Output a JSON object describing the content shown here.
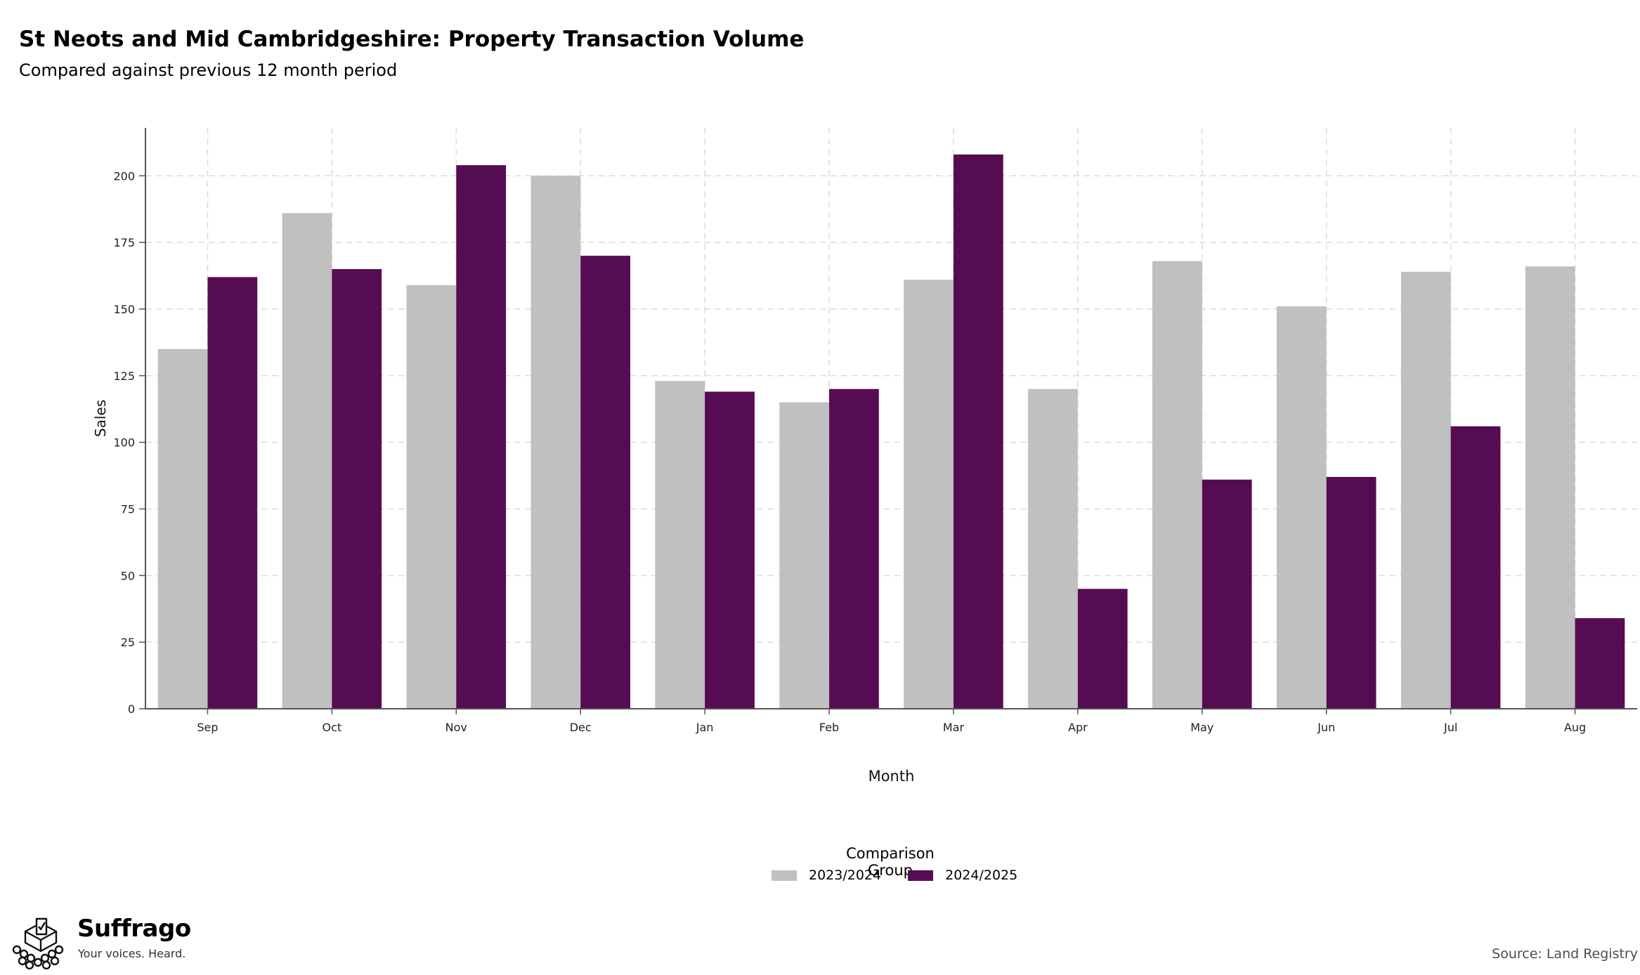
{
  "title": "St Neots and Mid Cambridgeshire: Property Transaction Volume",
  "subtitle": "Compared against previous 12 month period",
  "source": "Source: Land Registry",
  "brand": {
    "name": "Suffrago",
    "tagline": "Your voices. Heard.",
    "logo_icon": "ballot-box-crowd-icon"
  },
  "colors": {
    "series_2023": "#c0c0c0",
    "series_2024": "#560c52",
    "grid": "#dcdcdc",
    "axis": "#555555"
  },
  "legend": {
    "title": "Comparison Group",
    "placement": "bottom-center"
  },
  "chart_data": {
    "type": "bar",
    "xlabel": "Month",
    "ylabel": "Sales",
    "ylim": [
      0,
      218
    ],
    "yticks": [
      0,
      25,
      50,
      75,
      100,
      125,
      150,
      175,
      200
    ],
    "grid": true,
    "categories": [
      "Sep",
      "Oct",
      "Nov",
      "Dec",
      "Jan",
      "Feb",
      "Mar",
      "Apr",
      "May",
      "Jun",
      "Jul",
      "Aug"
    ],
    "series": [
      {
        "name": "2023/2024",
        "values": [
          135,
          186,
          159,
          200,
          123,
          115,
          161,
          120,
          168,
          151,
          164,
          166
        ]
      },
      {
        "name": "2024/2025",
        "values": [
          162,
          165,
          204,
          170,
          119,
          120,
          208,
          45,
          86,
          87,
          106,
          34
        ]
      }
    ]
  }
}
